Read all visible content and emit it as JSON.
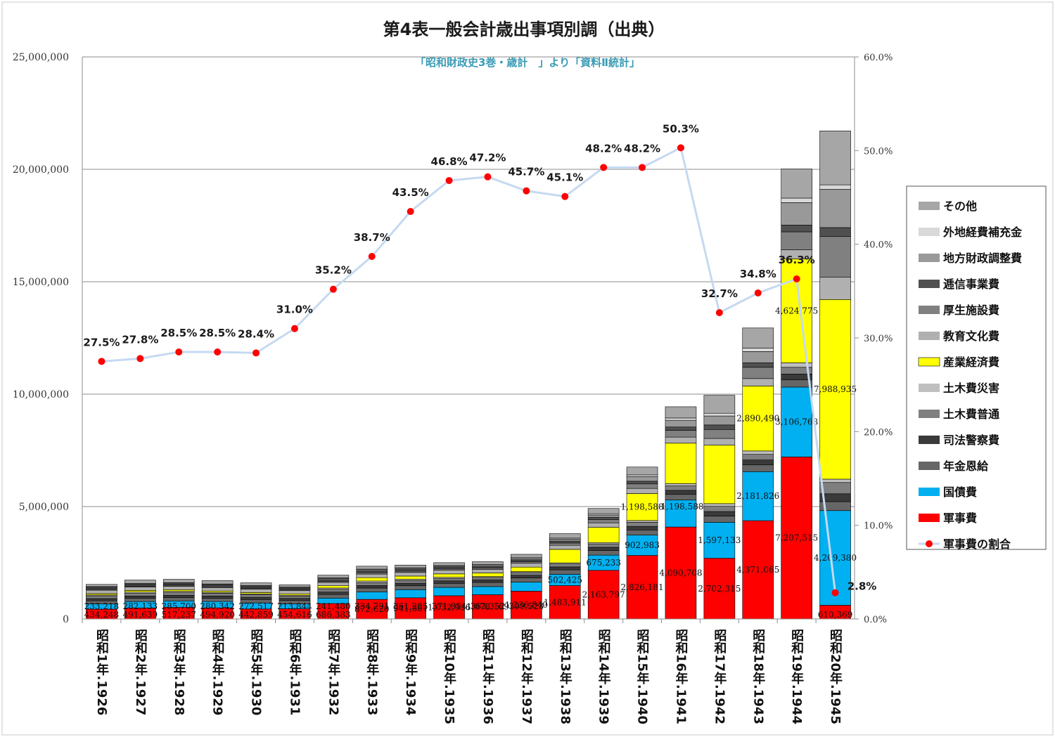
{
  "chart_data": {
    "type": "bar",
    "stacked": true,
    "title": "第4表一般会計歳出事項別調（出典）",
    "subtitle": "「昭和財政史3巻・歳計　」より「資料Ⅱ統計」",
    "categories": [
      "昭和1年.1926",
      "昭和2年.1927",
      "昭和3年.1928",
      "昭和4年.1929",
      "昭和5年.1930",
      "昭和6年.1931",
      "昭和7年.1932",
      "昭和8年.1933",
      "昭和9年.1934",
      "昭和10年.1935",
      "昭和11年.1936",
      "昭和12年.1937",
      "昭和13年.1938",
      "昭和14年.1939",
      "昭和15年.1940",
      "昭和16年.1941",
      "昭和17年.1942",
      "昭和18年.1943",
      "昭和19年.1944",
      "昭和20年.1945"
    ],
    "ylim": [
      0,
      25000000
    ],
    "y_ticks": [
      "0",
      "5,000,000",
      "10,000,000",
      "15,000,000",
      "20,000,000",
      "25,000,000"
    ],
    "y2lim": [
      0,
      60
    ],
    "y2_ticks": [
      "0.0%",
      "10.0%",
      "20.0%",
      "30.0%",
      "40.0%",
      "50.0%",
      "60.0%"
    ],
    "grid": true,
    "legend_position": "right",
    "series": [
      {
        "name": "軍事費",
        "color": "#ff0000",
        "values": [
          434248,
          491639,
          517237,
          494920,
          442859,
          454616,
          686383,
          872620,
          941881,
          1032936,
          1078169,
          1236840,
          1483911,
          2163797,
          2826181,
          4090708,
          2702315,
          4371065,
          7207515,
          610369
        ],
        "labels": [
          "434,248",
          "491,639",
          "517,237",
          "494,920",
          "442,859",
          "454,616",
          "686,383",
          "872,620",
          "941,881",
          "1,032,936",
          "1,078,169",
          "1,236,840",
          "1,483,911",
          "2,163,797",
          "2,826,181",
          "4,090,708",
          "2,702,315",
          "4,371,065",
          "7,207,515",
          "610,369"
        ]
      },
      {
        "name": "国債費",
        "color": "#00b0f0",
        "values": [
          233218,
          282133,
          285700,
          280342,
          272517,
          213844,
          241480,
          334791,
          361285,
          371854,
          363352,
          399523,
          502425,
          675233,
          902983,
          1198588,
          1597133,
          2181826,
          3106768,
          4209380
        ],
        "labels": [
          "233,218",
          "282,133",
          "285,700",
          "280,342",
          "272,517",
          "213,844",
          "241,480",
          "334,791",
          "361,285",
          "371,854",
          "363,352",
          "399,523",
          "502,425",
          "675,233",
          "902,983",
          "",
          "1,597,133",
          "2,181,826",
          "3,106,768",
          "4,209,380"
        ]
      },
      {
        "name": "年金恩給",
        "color": "#666666",
        "values": [
          140000,
          145000,
          150000,
          150000,
          150000,
          150000,
          160000,
          170000,
          175000,
          180000,
          185000,
          190000,
          200000,
          210000,
          230000,
          250000,
          280000,
          300000,
          330000,
          400000
        ]
      },
      {
        "name": "司法警察費",
        "color": "#3a3a3a",
        "values": [
          100000,
          100000,
          100000,
          100000,
          100000,
          100000,
          110000,
          110000,
          110000,
          110000,
          110000,
          120000,
          130000,
          140000,
          160000,
          180000,
          200000,
          220000,
          250000,
          350000
        ]
      },
      {
        "name": "土木費普通",
        "color": "#7f7f7f",
        "values": [
          120000,
          130000,
          130000,
          120000,
          110000,
          100000,
          120000,
          130000,
          120000,
          110000,
          110000,
          120000,
          130000,
          150000,
          180000,
          200000,
          230000,
          250000,
          300000,
          500000
        ]
      },
      {
        "name": "土木費災害",
        "color": "#bfbfbf",
        "values": [
          40000,
          50000,
          50000,
          40000,
          40000,
          40000,
          60000,
          70000,
          60000,
          50000,
          40000,
          40000,
          50000,
          60000,
          80000,
          100000,
          120000,
          150000,
          200000,
          150000
        ]
      },
      {
        "name": "産業経済費",
        "color": "#ffff00",
        "values": [
          60000,
          70000,
          70000,
          60000,
          60000,
          60000,
          100000,
          150000,
          140000,
          150000,
          160000,
          200000,
          600000,
          675000,
          1198588,
          1800000,
          2600000,
          2890490,
          4624775,
          7988935
        ],
        "labels": [
          "",
          "",
          "",
          "",
          "",
          "",
          "",
          "",
          "",
          "",
          "",
          "",
          "",
          "",
          "1,198,588",
          "",
          "",
          "2,890,490",
          "4,624,775",
          "7,988,935"
        ]
      },
      {
        "name": "教育文化費",
        "color": "#b0b0b0",
        "values": [
          150000,
          150000,
          150000,
          150000,
          150000,
          140000,
          150000,
          160000,
          160000,
          160000,
          160000,
          170000,
          180000,
          200000,
          230000,
          270000,
          300000,
          330000,
          400000,
          1000000
        ]
      },
      {
        "name": "厚生施設費",
        "color": "#808080",
        "values": [
          40000,
          40000,
          40000,
          40000,
          40000,
          40000,
          50000,
          60000,
          60000,
          60000,
          60000,
          70000,
          100000,
          150000,
          200000,
          300000,
          400000,
          500000,
          800000,
          1800000
        ]
      },
      {
        "name": "逓信事業費",
        "color": "#505050",
        "values": [
          60000,
          60000,
          60000,
          60000,
          60000,
          60000,
          70000,
          70000,
          70000,
          70000,
          70000,
          80000,
          90000,
          100000,
          120000,
          150000,
          200000,
          200000,
          300000,
          400000
        ]
      },
      {
        "name": "地方財政調整費",
        "color": "#999999",
        "values": [
          40000,
          40000,
          40000,
          40000,
          40000,
          40000,
          50000,
          60000,
          50000,
          50000,
          50000,
          60000,
          80000,
          100000,
          200000,
          300000,
          400000,
          500000,
          1000000,
          1700000
        ]
      },
      {
        "name": "外地経費補充金",
        "color": "#d9d9d9",
        "values": [
          20000,
          20000,
          20000,
          20000,
          20000,
          20000,
          30000,
          30000,
          30000,
          30000,
          30000,
          40000,
          50000,
          60000,
          80000,
          100000,
          120000,
          150000,
          200000,
          200000
        ]
      },
      {
        "name": "その他",
        "color": "#a6a6a6",
        "values": [
          100000,
          150000,
          150000,
          150000,
          120000,
          100000,
          120000,
          130000,
          120000,
          130000,
          130000,
          150000,
          200000,
          230000,
          350000,
          500000,
          800000,
          900000,
          1300000,
          2400000
        ]
      }
    ],
    "ratio_series": {
      "name": "軍事費の割合",
      "line_color": "#c5d9f1",
      "marker_color": "#ff0000",
      "values": [
        27.5,
        27.8,
        28.5,
        28.5,
        28.4,
        31.0,
        35.2,
        38.7,
        43.5,
        46.8,
        47.2,
        45.7,
        45.1,
        48.2,
        48.2,
        50.3,
        32.7,
        34.8,
        36.3,
        2.8
      ],
      "labels": [
        "27.5%",
        "27.8%",
        "28.5%",
        "28.5%",
        "28.4%",
        "31.0%",
        "35.2%",
        "38.7%",
        "43.5%",
        "46.8%",
        "47.2%",
        "45.7%",
        "45.1%",
        "48.2%",
        "48.2%",
        "50.3%",
        "32.7%",
        "34.8%",
        "36.3%",
        "2.8%"
      ]
    }
  }
}
